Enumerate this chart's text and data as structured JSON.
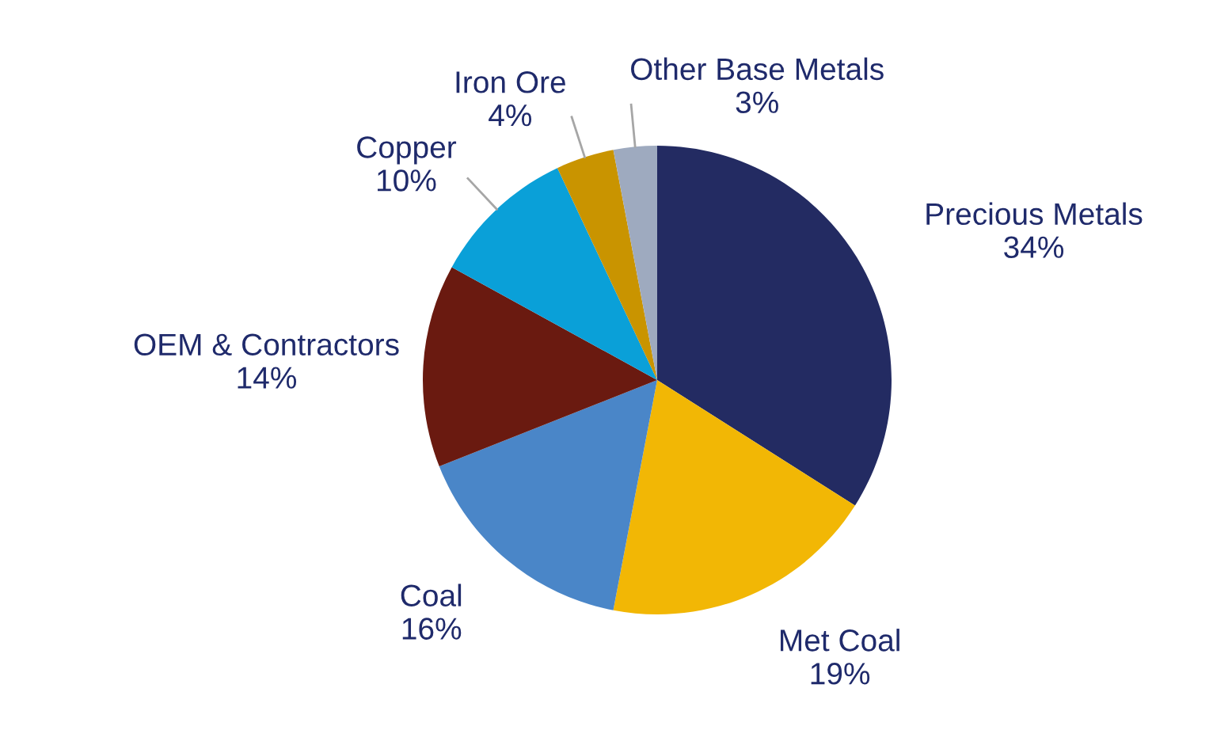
{
  "chart_data": {
    "type": "pie",
    "categories": [
      "Precious Metals",
      "Met Coal",
      "Coal",
      "OEM & Contractors",
      "Copper",
      "Iron Ore",
      "Other Base Metals"
    ],
    "values": [
      34,
      19,
      16,
      14,
      10,
      4,
      3
    ],
    "colors": [
      "#232b62",
      "#f2b705",
      "#4a86c8",
      "#6a1a10",
      "#0aa0d8",
      "#c99400",
      "#9eaabf"
    ],
    "value_labels": [
      "34%",
      "19%",
      "16%",
      "14%",
      "10%",
      "4%",
      "3%"
    ],
    "legend": false
  }
}
